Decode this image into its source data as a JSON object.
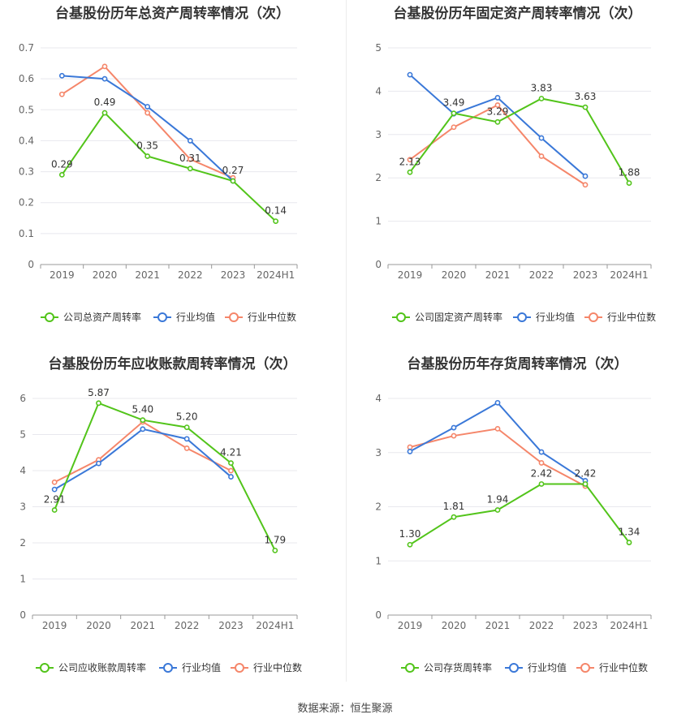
{
  "source": "数据来源：恒生聚源",
  "colors": {
    "company": "#52c41a",
    "avg": "#3a78d8",
    "median": "#f5866a",
    "grid": "#e8e8ee",
    "axis": "#666666"
  },
  "legend": {
    "avg_label": "行业均值",
    "median_label": "行业中位数"
  },
  "chart_data": [
    {
      "type": "line",
      "title": "台基股份历年总资产周转率情况（次）",
      "categories": [
        "2019",
        "2020",
        "2021",
        "2022",
        "2023",
        "2024H1"
      ],
      "ylim": [
        0,
        0.7
      ],
      "yticks": [
        "0",
        "0.1",
        "0.2",
        "0.3",
        "0.4",
        "0.5",
        "0.6",
        "0.7"
      ],
      "series": [
        {
          "name": "公司总资产周转率",
          "values": [
            0.29,
            0.49,
            0.35,
            0.31,
            0.27,
            0.14
          ],
          "labels": [
            "0.29",
            "0.49",
            "0.35",
            "0.31",
            "0.27",
            "0.14"
          ]
        },
        {
          "name": "行业均值",
          "values": [
            0.61,
            0.6,
            0.51,
            0.4,
            0.27,
            null
          ]
        },
        {
          "name": "行业中位数",
          "values": [
            0.55,
            0.64,
            0.49,
            0.34,
            0.28,
            null
          ]
        }
      ],
      "grid": true,
      "legend": "bottom"
    },
    {
      "type": "line",
      "title": "台基股份历年固定资产周转率情况（次）",
      "categories": [
        "2019",
        "2020",
        "2021",
        "2022",
        "2023",
        "2024H1"
      ],
      "ylim": [
        0,
        5
      ],
      "yticks": [
        "0",
        "1",
        "2",
        "3",
        "4",
        "5"
      ],
      "series": [
        {
          "name": "公司固定资产周转率",
          "values": [
            2.13,
            3.49,
            3.29,
            3.83,
            3.63,
            1.88
          ],
          "labels": [
            "2.13",
            "3.49",
            "3.29",
            "3.83",
            "3.63",
            "1.88"
          ]
        },
        {
          "name": "行业均值",
          "values": [
            4.38,
            3.48,
            3.85,
            2.92,
            2.04,
            null
          ]
        },
        {
          "name": "行业中位数",
          "values": [
            2.42,
            3.17,
            3.68,
            2.5,
            1.84,
            null
          ]
        }
      ],
      "grid": true,
      "legend": "bottom"
    },
    {
      "type": "line",
      "title": "台基股份历年应收账款周转率情况（次）",
      "categories": [
        "2019",
        "2020",
        "2021",
        "2022",
        "2023",
        "2024H1"
      ],
      "ylim": [
        0,
        6
      ],
      "yticks": [
        "0",
        "1",
        "2",
        "3",
        "4",
        "5",
        "6"
      ],
      "series": [
        {
          "name": "公司应收账款周转率",
          "values": [
            2.91,
            5.87,
            5.4,
            5.2,
            4.21,
            1.79
          ],
          "labels": [
            "2.91",
            "5.87",
            "5.40",
            "5.20",
            "4.21",
            "1.79"
          ]
        },
        {
          "name": "行业均值",
          "values": [
            3.48,
            4.2,
            5.15,
            4.88,
            3.83,
            null
          ]
        },
        {
          "name": "行业中位数",
          "values": [
            3.68,
            4.3,
            5.35,
            4.62,
            4.0,
            null
          ]
        }
      ],
      "grid": true,
      "legend": "bottom"
    },
    {
      "type": "line",
      "title": "台基股份历年存货周转率情况（次）",
      "categories": [
        "2019",
        "2020",
        "2021",
        "2022",
        "2023",
        "2024H1"
      ],
      "ylim": [
        0,
        4
      ],
      "yticks": [
        "0",
        "1",
        "2",
        "3",
        "4"
      ],
      "series": [
        {
          "name": "公司存货周转率",
          "values": [
            1.3,
            1.81,
            1.94,
            2.42,
            2.42,
            1.34
          ],
          "labels": [
            "1.30",
            "1.81",
            "1.94",
            "2.42",
            "2.42",
            "1.34"
          ]
        },
        {
          "name": "行业均值",
          "values": [
            3.02,
            3.46,
            3.92,
            3.01,
            2.48,
            null
          ]
        },
        {
          "name": "行业中位数",
          "values": [
            3.1,
            3.31,
            3.44,
            2.81,
            2.38,
            null
          ]
        }
      ],
      "grid": true,
      "legend": "bottom"
    }
  ]
}
